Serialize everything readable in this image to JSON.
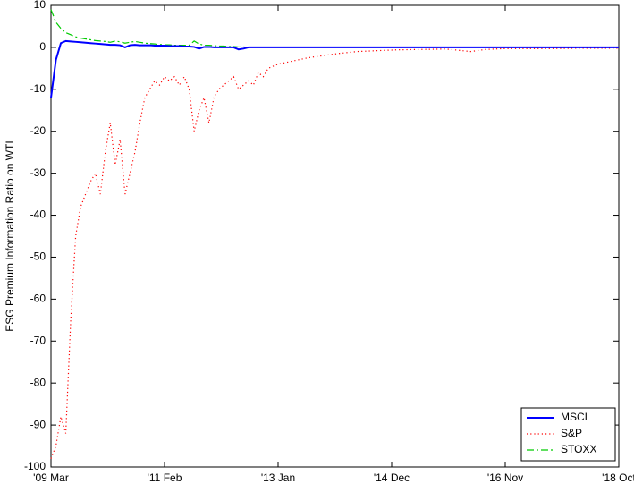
{
  "chart_data": {
    "type": "line",
    "ylabel": "ESG Premium Information Ratio on WTI",
    "x": [
      0,
      1,
      2,
      3,
      4,
      5,
      6,
      7,
      8,
      9,
      10,
      11,
      12,
      13,
      14,
      15,
      16,
      17,
      18,
      19,
      20,
      21,
      22,
      23,
      24,
      25,
      26,
      27,
      28,
      29,
      30,
      31,
      32,
      33,
      34,
      35,
      36,
      37,
      38,
      39,
      40,
      41,
      42,
      43,
      44,
      46,
      48,
      50,
      52,
      55,
      58,
      62,
      66,
      70,
      75,
      80,
      85,
      88,
      92,
      100,
      108,
      115
    ],
    "xlim": [
      0,
      115
    ],
    "xticks": [
      {
        "value": 0,
        "label": "'09 Mar"
      },
      {
        "value": 23,
        "label": "'11 Feb"
      },
      {
        "value": 46,
        "label": "'13 Jan"
      },
      {
        "value": 69,
        "label": "'14 Dec"
      },
      {
        "value": 92,
        "label": "'16 Nov"
      },
      {
        "value": 115,
        "label": "'18 Oct"
      }
    ],
    "ylim": [
      -100,
      10
    ],
    "yticks": [
      10,
      0,
      -10,
      -20,
      -30,
      -40,
      -50,
      -60,
      -70,
      -80,
      -90,
      -100
    ],
    "legend": "lower right",
    "series": [
      {
        "name": "MSCI",
        "color": "#0000ff",
        "style": "solid",
        "values": [
          -12,
          -3,
          1,
          1.5,
          1.4,
          1.3,
          1.2,
          1.1,
          1,
          0.9,
          0.8,
          0.7,
          0.6,
          0.6,
          0.5,
          0,
          0.5,
          0.6,
          0.5,
          0.5,
          0.5,
          0.4,
          0.4,
          0.4,
          0.3,
          0.3,
          0.3,
          0.2,
          0.2,
          0.1,
          -0.3,
          0.1,
          0.1,
          0,
          0,
          0,
          0,
          0,
          -0.5,
          -0.3,
          0,
          0,
          0,
          0,
          0,
          0,
          0,
          0,
          0,
          0,
          0,
          0,
          0,
          0,
          0,
          0,
          0,
          0,
          0,
          0,
          0,
          0
        ]
      },
      {
        "name": "S&P",
        "color": "#ff0000",
        "style": "dotted",
        "values": [
          -98,
          -95,
          -88,
          -92,
          -65,
          -45,
          -38,
          -35,
          -32,
          -30,
          -35,
          -25,
          -18,
          -28,
          -22,
          -35,
          -30,
          -25,
          -18,
          -12,
          -10,
          -8,
          -9,
          -7,
          -8,
          -7,
          -9,
          -7,
          -10,
          -20,
          -15,
          -12,
          -18,
          -12,
          -10,
          -9,
          -8,
          -7,
          -10,
          -9,
          -8,
          -9,
          -6,
          -7,
          -5,
          -4,
          -3.5,
          -3,
          -2.5,
          -2,
          -1.5,
          -1,
          -0.8,
          -0.6,
          -0.5,
          -0.4,
          -1,
          -0.5,
          -0.3,
          -0.3,
          -0.2,
          -0.2
        ]
      },
      {
        "name": "STOXX",
        "color": "#00cc00",
        "style": "dashdot",
        "values": [
          9,
          6,
          4.5,
          3.5,
          3,
          2.5,
          2.2,
          2,
          1.8,
          1.6,
          1.5,
          1.4,
          1.2,
          1.5,
          1.3,
          1,
          1.2,
          1.4,
          1.2,
          1,
          0.9,
          0.8,
          0.7,
          0.6,
          0.6,
          0.5,
          0.5,
          0.5,
          0.5,
          1.5,
          0.8,
          0.5,
          0.5,
          0.4,
          0.3,
          0.3,
          0.2,
          0.2,
          0.1,
          0.1,
          0,
          0,
          0,
          0,
          0,
          0,
          0,
          0,
          0,
          0,
          0,
          0,
          0,
          0,
          0,
          0,
          0,
          0,
          0,
          0,
          0,
          0
        ]
      }
    ]
  }
}
